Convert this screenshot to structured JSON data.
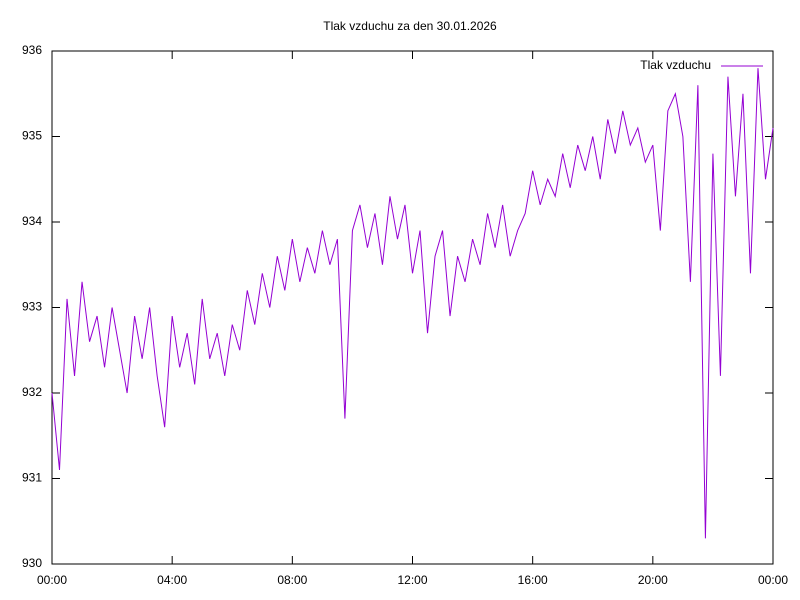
{
  "chart_data": {
    "type": "line",
    "title": "Tlak vzduchu za den 30.01.2026",
    "x": [
      0,
      0.25,
      0.5,
      0.75,
      1,
      1.25,
      1.5,
      1.75,
      2,
      2.25,
      2.5,
      2.75,
      3,
      3.25,
      3.5,
      3.75,
      4,
      4.25,
      4.5,
      4.75,
      5,
      5.25,
      5.5,
      5.75,
      6,
      6.25,
      6.5,
      6.75,
      7,
      7.25,
      7.5,
      7.75,
      8,
      8.25,
      8.5,
      8.75,
      9,
      9.25,
      9.5,
      9.75,
      10,
      10.25,
      10.5,
      10.75,
      11,
      11.25,
      11.5,
      11.75,
      12,
      12.25,
      12.5,
      12.75,
      13,
      13.25,
      13.5,
      13.75,
      14,
      14.25,
      14.5,
      14.75,
      15,
      15.25,
      15.5,
      15.75,
      16,
      16.25,
      16.5,
      16.75,
      17,
      17.25,
      17.5,
      17.75,
      18,
      18.25,
      18.5,
      18.75,
      19,
      19.25,
      19.5,
      19.75,
      20,
      20.25,
      20.5,
      20.75,
      21,
      21.25,
      21.5,
      21.75,
      22,
      22.25,
      22.5,
      22.75,
      23,
      23.25,
      23.5,
      23.75,
      24
    ],
    "series": [
      {
        "name": "Tlak vzduchu",
        "color": "#9400d3",
        "values": [
          932.0,
          931.1,
          933.1,
          932.2,
          933.3,
          932.6,
          932.9,
          932.3,
          933.0,
          932.5,
          932.0,
          932.9,
          932.4,
          933.0,
          932.2,
          931.6,
          932.9,
          932.3,
          932.7,
          932.1,
          933.1,
          932.4,
          932.7,
          932.2,
          932.8,
          932.5,
          933.2,
          932.8,
          933.4,
          933.0,
          933.6,
          933.2,
          933.8,
          933.3,
          933.7,
          933.4,
          933.9,
          933.5,
          933.8,
          931.7,
          933.9,
          934.2,
          933.7,
          934.1,
          933.5,
          934.3,
          933.8,
          934.2,
          933.4,
          933.9,
          932.7,
          933.6,
          933.9,
          932.9,
          933.6,
          933.3,
          933.8,
          933.5,
          934.1,
          933.7,
          934.2,
          933.6,
          933.9,
          934.1,
          934.6,
          934.2,
          934.5,
          934.3,
          934.8,
          934.4,
          934.9,
          934.6,
          935.0,
          934.5,
          935.2,
          934.8,
          935.3,
          934.9,
          935.1,
          934.7,
          934.9,
          933.9,
          935.3,
          935.5,
          935.0,
          933.3,
          935.6,
          930.3,
          934.8,
          932.2,
          935.7,
          934.3,
          935.5,
          933.4,
          935.8,
          934.5,
          935.1
        ]
      }
    ],
    "xlim": [
      0,
      24
    ],
    "xticks": [
      {
        "value": 0,
        "label": "00:00"
      },
      {
        "value": 4,
        "label": "04:00"
      },
      {
        "value": 8,
        "label": "08:00"
      },
      {
        "value": 12,
        "label": "12:00"
      },
      {
        "value": 16,
        "label": "16:00"
      },
      {
        "value": 20,
        "label": "20:00"
      },
      {
        "value": 24,
        "label": "00:00"
      }
    ],
    "ylim": [
      930,
      936
    ],
    "yticks": [
      930,
      931,
      932,
      933,
      934,
      935,
      936
    ],
    "legend": "top-right"
  }
}
